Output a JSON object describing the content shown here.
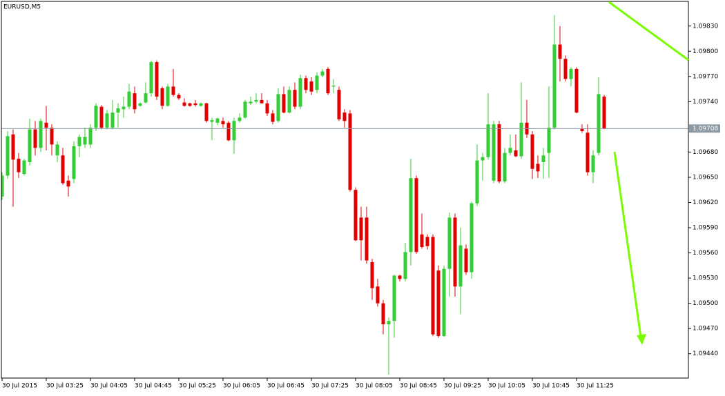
{
  "chart_data": {
    "type": "candlestick",
    "title": "EURUSD,M5",
    "categories": [
      "30 Jul 2015",
      null,
      null,
      null,
      null,
      null,
      null,
      null,
      "30 Jul 03:25",
      null,
      null,
      null,
      null,
      null,
      null,
      null,
      "30 Jul 04:05",
      null,
      null,
      null,
      null,
      null,
      null,
      null,
      "30 Jul 04:45",
      null,
      null,
      null,
      null,
      null,
      null,
      null,
      "30 Jul 05:25",
      null,
      null,
      null,
      null,
      null,
      null,
      null,
      "30 Jul 06:05",
      null,
      null,
      null,
      null,
      null,
      null,
      null,
      "30 Jul 06:45",
      null,
      null,
      null,
      null,
      null,
      null,
      null,
      "30 Jul 07:25",
      null,
      null,
      null,
      null,
      null,
      null,
      null,
      "30 Jul 08:05",
      null,
      null,
      null,
      null,
      null,
      null,
      null,
      "30 Jul 08:45",
      null,
      null,
      null,
      null,
      null,
      null,
      null,
      "30 Jul 09:25",
      null,
      null,
      null,
      null,
      null,
      null,
      null,
      "30 Jul 10:05",
      null,
      null,
      null,
      null,
      null,
      null,
      null,
      "30 Jul 10:45",
      null,
      null,
      null,
      null,
      null,
      null,
      null,
      "30 Jul 11:25",
      null,
      null,
      null,
      null,
      null
    ],
    "open": [
      1.09627,
      1.09652,
      1.09701,
      1.09672,
      1.09654,
      1.09668,
      1.09707,
      1.09685,
      1.09715,
      1.09709,
      1.09676,
      1.09676,
      1.09646,
      1.09648,
      1.09687,
      1.09689,
      1.09689,
      1.09709,
      1.09734,
      1.09709,
      1.09709,
      1.09727,
      1.09731,
      1.09734,
      1.0975,
      1.09735,
      1.09739,
      1.0975,
      1.09787,
      1.09756,
      1.09735,
      1.09758,
      1.09748,
      1.09739,
      1.09738,
      1.09738,
      1.09735,
      1.09738,
      1.09716,
      1.09715,
      1.09717,
      1.09715,
      1.09694,
      1.09717,
      1.09721,
      1.09738,
      1.0974,
      1.09742,
      1.09738,
      1.09726,
      1.09717,
      1.09749,
      1.09727,
      1.09754,
      1.09734,
      1.09768,
      1.09764,
      1.09754,
      1.09771,
      1.09779,
      1.09758,
      1.09754,
      1.09727,
      1.09726,
      1.09635,
      1.09602,
      1.09602,
      1.09549,
      1.0952,
      1.095,
      1.09475,
      1.09479,
      1.09533,
      1.09529,
      1.09561,
      1.09649,
      1.09582,
      1.09579,
      1.09579,
      1.09539,
      1.09461,
      1.09541,
      1.09602,
      1.0952,
      1.09565,
      1.09537,
      1.09619,
      1.0967,
      1.09674,
      1.09646,
      1.09713,
      1.09645,
      1.09679,
      1.09682,
      1.09675,
      1.09715,
      1.09701,
      1.09666,
      1.09668,
      1.09679,
      1.09709,
      1.09808,
      1.09791,
      1.09767,
      1.09779,
      1.09708,
      1.09703,
      1.09656,
      1.09679,
      1.09746
    ],
    "high": [
      1.09656,
      1.09705,
      1.09707,
      1.09679,
      1.09672,
      1.0972,
      1.09717,
      1.0972,
      1.09735,
      1.09713,
      1.09693,
      1.09685,
      1.09652,
      1.09693,
      1.09701,
      1.09709,
      1.09713,
      1.09738,
      1.09736,
      1.0973,
      1.09742,
      1.09738,
      1.09746,
      1.09761,
      1.09758,
      1.09739,
      1.09763,
      1.09789,
      1.09789,
      1.09758,
      1.09761,
      1.09779,
      1.0975,
      1.09744,
      1.09739,
      1.09742,
      1.09739,
      1.09739,
      1.09721,
      1.09721,
      1.09721,
      1.09717,
      1.09721,
      1.09726,
      1.09742,
      1.09746,
      1.0975,
      1.0975,
      1.09742,
      1.0973,
      1.09756,
      1.09758,
      1.09758,
      1.09763,
      1.09772,
      1.09771,
      1.09769,
      1.09775,
      1.09779,
      1.09781,
      1.09767,
      1.09758,
      1.09731,
      1.0973,
      1.09638,
      1.09615,
      1.09615,
      1.09553,
      1.09529,
      1.09504,
      1.09483,
      1.09534,
      1.09534,
      1.09572,
      1.09672,
      1.09652,
      1.09607,
      1.09582,
      1.09582,
      1.09545,
      1.09545,
      1.09608,
      1.09607,
      1.0959,
      1.0957,
      1.09621,
      1.09689,
      1.09679,
      1.0975,
      1.09717,
      1.09717,
      1.09685,
      1.09701,
      1.09701,
      1.09763,
      1.09742,
      1.09705,
      1.09676,
      1.09685,
      1.09758,
      1.09843,
      1.0983,
      1.09795,
      1.09781,
      1.09781,
      1.09713,
      1.09713,
      1.09682,
      1.09769,
      1.09748
    ],
    "low": [
      1.09623,
      1.09648,
      1.09615,
      1.09649,
      1.09652,
      1.09664,
      1.09676,
      1.0968,
      1.09682,
      1.09676,
      1.09668,
      1.09641,
      1.09627,
      1.09643,
      1.09674,
      1.09685,
      1.09685,
      1.09705,
      1.09707,
      1.09707,
      1.09707,
      1.09709,
      1.09721,
      1.09731,
      1.09726,
      1.09734,
      1.09738,
      1.09746,
      1.09742,
      1.09731,
      1.09734,
      1.09746,
      1.09742,
      1.09734,
      1.09734,
      1.09734,
      1.09734,
      1.09715,
      1.09694,
      1.09712,
      1.09709,
      1.09693,
      1.09678,
      1.09715,
      1.0972,
      1.09736,
      1.09738,
      1.09738,
      1.09723,
      1.09713,
      1.09715,
      1.09726,
      1.09726,
      1.09731,
      1.09731,
      1.0975,
      1.09748,
      1.0975,
      1.09769,
      1.09748,
      1.0975,
      1.09717,
      1.09709,
      1.09633,
      1.09574,
      1.09551,
      1.09547,
      1.09504,
      1.09496,
      1.09463,
      1.09415,
      1.09459,
      1.09526,
      1.09526,
      1.09545,
      1.09559,
      1.09565,
      1.09564,
      1.09461,
      1.09459,
      1.0946,
      1.09508,
      1.09508,
      1.09487,
      1.09534,
      1.09529,
      1.09616,
      1.09646,
      1.09671,
      1.09643,
      1.09643,
      1.09643,
      1.09676,
      1.09674,
      1.09672,
      1.09697,
      1.09648,
      1.09649,
      1.09648,
      1.09649,
      1.09707,
      1.09764,
      1.09764,
      1.09758,
      1.09726,
      1.09703,
      1.09652,
      1.09643,
      1.09676,
      1.09707
    ],
    "close": [
      1.09652,
      1.09699,
      1.09671,
      1.09656,
      1.0967,
      1.09707,
      1.09685,
      1.09717,
      1.09709,
      1.09689,
      1.09689,
      1.09643,
      1.09639,
      1.09687,
      1.09698,
      1.09698,
      1.09709,
      1.09735,
      1.09709,
      1.09726,
      1.09727,
      1.09732,
      1.09734,
      1.09752,
      1.09731,
      1.09738,
      1.0975,
      1.09787,
      1.09746,
      1.09735,
      1.09758,
      1.09748,
      1.09744,
      1.09735,
      1.09735,
      1.09736,
      1.09738,
      1.09717,
      1.09718,
      1.0972,
      1.09713,
      1.09694,
      1.09717,
      1.09721,
      1.0974,
      1.0974,
      1.09742,
      1.09738,
      1.09726,
      1.09716,
      1.09749,
      1.09727,
      1.09754,
      1.09734,
      1.09768,
      1.09754,
      1.09752,
      1.09771,
      1.09776,
      1.0975,
      1.09759,
      1.09719,
      1.09717,
      1.09635,
      1.09575,
      1.09575,
      1.09551,
      1.09518,
      1.095,
      1.09475,
      1.09479,
      1.09533,
      1.09529,
      1.09561,
      1.09649,
      1.09561,
      1.09567,
      1.09568,
      1.09463,
      1.09461,
      1.09541,
      1.09602,
      1.0952,
      1.09569,
      1.09537,
      1.09619,
      1.0967,
      1.09674,
      1.09713,
      1.09713,
      1.09645,
      1.09679,
      1.09685,
      1.09675,
      1.09715,
      1.09701,
      1.0966,
      1.09657,
      1.09676,
      1.09709,
      1.09808,
      1.09791,
      1.09767,
      1.09779,
      1.09727,
      1.09705,
      1.09656,
      1.09676,
      1.09749,
      1.09708
    ],
    "up_color": "#32cd32",
    "down_color": "#e00000",
    "price_line_color": "#8c9aa5",
    "ylim": [
      1.09411,
      1.09861
    ],
    "yticks": [
      {
        "value": 1.0983,
        "label": "1.09830"
      },
      {
        "value": 1.098,
        "label": "1.09800"
      },
      {
        "value": 1.0977,
        "label": "1.09770"
      },
      {
        "value": 1.0974,
        "label": "1.09740"
      },
      {
        "value": 1.0968,
        "label": "1.09680"
      },
      {
        "value": 1.0965,
        "label": "1.09650"
      },
      {
        "value": 1.0962,
        "label": "1.09620"
      },
      {
        "value": 1.0959,
        "label": "1.09590"
      },
      {
        "value": 1.0956,
        "label": "1.09560"
      },
      {
        "value": 1.0953,
        "label": "1.09530"
      },
      {
        "value": 1.095,
        "label": "1.09500"
      },
      {
        "value": 1.0947,
        "label": "1.09470"
      },
      {
        "value": 1.0944,
        "label": "1.09440"
      }
    ]
  }
}
